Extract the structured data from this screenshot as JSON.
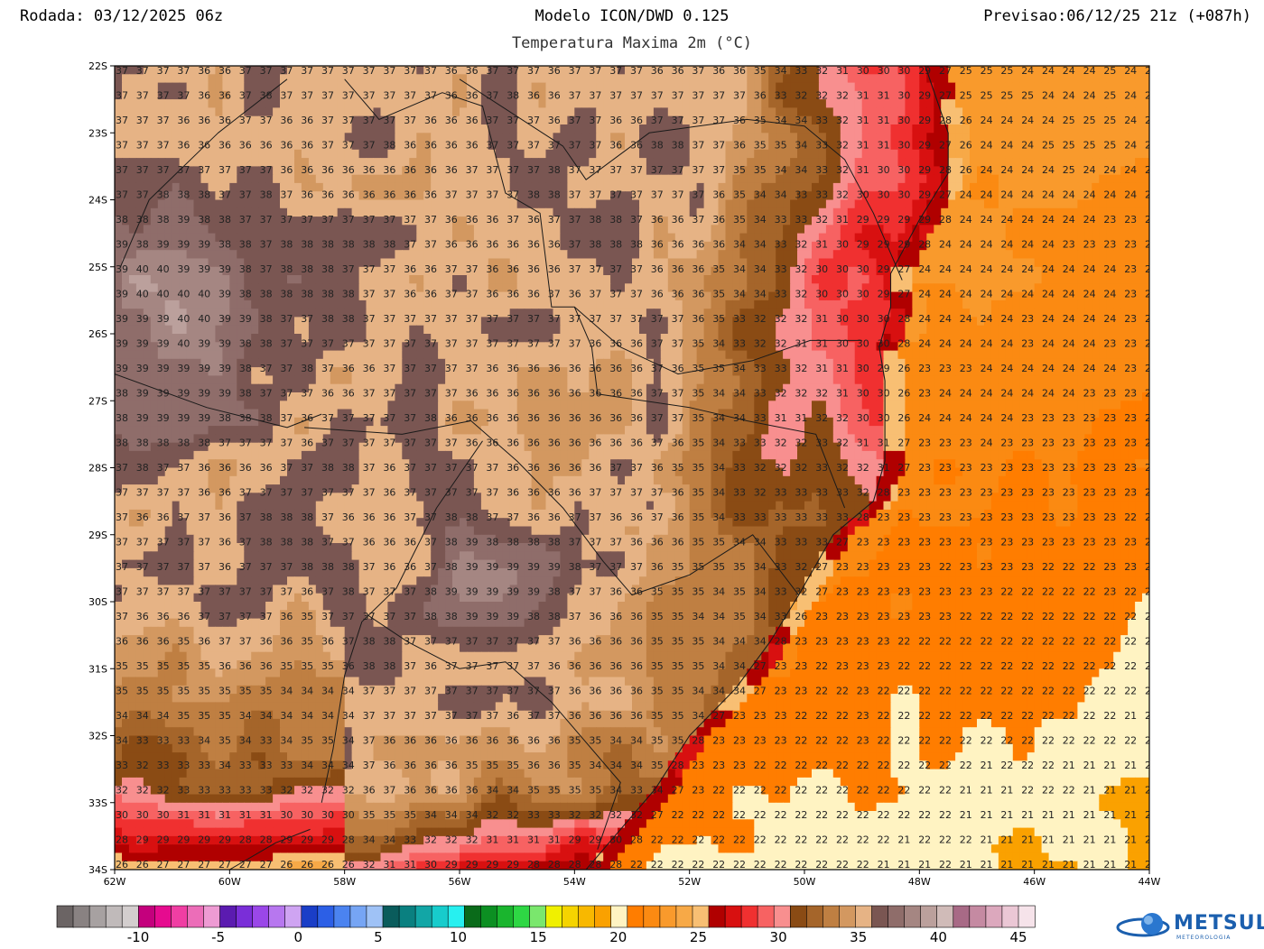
{
  "header": {
    "run": "Rodada: 03/12/2025 06z",
    "model": "Modelo ICON/DWD 0.125",
    "forecast": "Previsao:06/12/25 21z (+087h)",
    "variable": "Temperatura Maxima 2m (°C)"
  },
  "map": {
    "lon_range": [
      -62,
      -44
    ],
    "lat_range": [
      -34,
      -22
    ],
    "lon_ticks": [
      "62W",
      "60W",
      "58W",
      "56W",
      "54W",
      "52W",
      "50W",
      "48W",
      "46W",
      "44W"
    ],
    "lat_ticks": [
      "22S",
      "23S",
      "24S",
      "25S",
      "26S",
      "27S",
      "28S",
      "29S",
      "30S",
      "31S",
      "32S",
      "33S",
      "34S"
    ],
    "coastline_lonlat": [
      [
        -47.9,
        -22.0
      ],
      [
        -47.5,
        -23.0
      ],
      [
        -47.5,
        -23.6
      ],
      [
        -48.0,
        -24.3
      ],
      [
        -48.5,
        -25.1
      ],
      [
        -48.5,
        -25.6
      ],
      [
        -48.7,
        -26.2
      ],
      [
        -48.6,
        -26.7
      ],
      [
        -48.6,
        -27.3
      ],
      [
        -48.6,
        -27.9
      ],
      [
        -48.8,
        -28.5
      ],
      [
        -49.5,
        -29.0
      ],
      [
        -50.1,
        -29.9
      ],
      [
        -50.6,
        -30.6
      ],
      [
        -51.2,
        -31.3
      ],
      [
        -52.0,
        -32.0
      ],
      [
        -52.6,
        -32.8
      ],
      [
        -53.4,
        -33.6
      ],
      [
        -53.8,
        -34.0
      ]
    ],
    "borders_lonlat": [
      [
        [
          -58.0,
          -22.2
        ],
        [
          -57.4,
          -22.8
        ],
        [
          -56.3,
          -22.4
        ],
        [
          -55.6,
          -22.6
        ],
        [
          -55.2,
          -23.9
        ],
        [
          -54.6,
          -24.2
        ],
        [
          -54.4,
          -25.6
        ],
        [
          -54.0,
          -25.6
        ],
        [
          -53.7,
          -26.2
        ],
        [
          -53.6,
          -26.9
        ],
        [
          -52.0,
          -27.1
        ],
        [
          -51.0,
          -27.3
        ],
        [
          -49.8,
          -27.5
        ],
        [
          -49.3,
          -28.6
        ]
      ],
      [
        [
          -56.0,
          -22.2
        ],
        [
          -54.2,
          -23.2
        ],
        [
          -53.8,
          -23.7
        ],
        [
          -52.7,
          -23.0
        ],
        [
          -51.0,
          -22.8
        ],
        [
          -50.0,
          -22.9
        ],
        [
          -49.3,
          -23.4
        ],
        [
          -48.8,
          -24.2
        ],
        [
          -48.3,
          -25.2
        ]
      ],
      [
        [
          -54.0,
          -25.6
        ],
        [
          -53.2,
          -26.2
        ],
        [
          -52.2,
          -26.6
        ],
        [
          -50.9,
          -26.4
        ],
        [
          -49.9,
          -26.1
        ],
        [
          -49.0,
          -26.1
        ]
      ],
      [
        [
          -58.7,
          -27.4
        ],
        [
          -57.0,
          -27.5
        ],
        [
          -55.8,
          -27.3
        ],
        [
          -55.0,
          -27.9
        ],
        [
          -54.2,
          -28.6
        ],
        [
          -53.5,
          -29.4
        ],
        [
          -53.0,
          -29.9
        ],
        [
          -52.0,
          -29.6
        ],
        [
          -50.9,
          -29.0
        ],
        [
          -50.1,
          -29.9
        ]
      ],
      [
        [
          -57.6,
          -30.2
        ],
        [
          -56.9,
          -30.6
        ],
        [
          -56.0,
          -31.0
        ],
        [
          -55.2,
          -30.9
        ],
        [
          -54.4,
          -31.5
        ],
        [
          -53.8,
          -32.1
        ],
        [
          -53.2,
          -32.7
        ],
        [
          -53.6,
          -33.7
        ]
      ],
      [
        [
          -59.0,
          -22.2
        ],
        [
          -60.2,
          -23.0
        ],
        [
          -61.4,
          -24.0
        ],
        [
          -61.9,
          -25.0
        ]
      ],
      [
        [
          -62.0,
          -26.6
        ],
        [
          -60.4,
          -27.1
        ],
        [
          -59.0,
          -27.4
        ],
        [
          -58.4,
          -27.2
        ]
      ],
      [
        [
          -58.4,
          -33.0
        ],
        [
          -58.2,
          -32.2
        ],
        [
          -58.0,
          -31.1
        ],
        [
          -57.7,
          -30.3
        ],
        [
          -57.1,
          -29.8
        ],
        [
          -56.4,
          -28.6
        ],
        [
          -55.6,
          -27.6
        ]
      ],
      [
        [
          -60.0,
          -34.0
        ],
        [
          -59.2,
          -33.6
        ],
        [
          -58.6,
          -33.4
        ]
      ]
    ],
    "temperature_model": {
      "coast_line_temp": 22,
      "ocean_gradient_per_deg": -0.15,
      "land_hotspot_center": [
        -55.5,
        -29.8
      ],
      "land_hotspot_max": 39,
      "northwest_max": 40
    }
  },
  "colorbar": {
    "colors": [
      "#6b6464",
      "#898282",
      "#a7a1a1",
      "#c0baba",
      "#d3cece",
      "#c4007d",
      "#e60b8f",
      "#f03ea3",
      "#ec6db8",
      "#ee9bd3",
      "#5b1bb0",
      "#7a2ed8",
      "#9a47e8",
      "#b777ef",
      "#cfa4f2",
      "#1a3ec7",
      "#2c5fe6",
      "#4b83f0",
      "#76a5f4",
      "#9fc2f6",
      "#0a5c5c",
      "#0a8080",
      "#12a6a6",
      "#17cccc",
      "#27f0f0",
      "#0a6b1a",
      "#0c8f22",
      "#1ab52e",
      "#2ed744",
      "#7ae76d",
      "#f0f000",
      "#f5d400",
      "#f8b800",
      "#faa100",
      "#fff3c2",
      "#ff7d00",
      "#fb8a12",
      "#f99a2c",
      "#f7a947",
      "#f8bf73",
      "#b00000",
      "#d81010",
      "#f03030",
      "#f76262",
      "#f88f8f",
      "#8a4b14",
      "#a5652a",
      "#bf7f42",
      "#d39860",
      "#e6b385",
      "#7a5652",
      "#8f6d6a",
      "#a58682",
      "#bba09c",
      "#d0bbb8",
      "#a86a86",
      "#c58aa2",
      "#dca8bd",
      "#ebc7d5",
      "#f6e3ea"
    ],
    "tick_labels": [
      "-10",
      "-5",
      "0",
      "5",
      "10",
      "15",
      "20",
      "25",
      "30",
      "35",
      "40",
      "45"
    ]
  },
  "logo": {
    "name": "METSUL",
    "sub": "METEOROLOGIA",
    "icon": "globe-icon"
  }
}
